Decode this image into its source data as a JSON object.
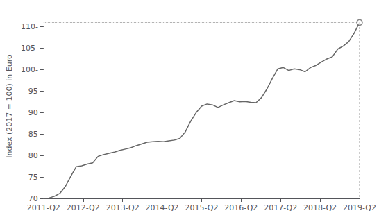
{
  "chart_data": {
    "type": "line",
    "ylabel": "Index (2017 = 100) in Euro",
    "x": [
      0,
      0.5517,
      1.1034,
      1.6552,
      2.2069,
      2.7586,
      3.3103,
      3.8621,
      4.4138,
      4.9655,
      5.5172,
      6.069,
      6.6207,
      7.1724,
      7.7241,
      8.2759,
      8.8276,
      9.3793,
      9.931,
      10.4828,
      11.0345,
      11.5862,
      12.1379,
      12.6897,
      13.2414,
      13.7931,
      14.3448,
      14.8966,
      15.4483,
      16,
      16.5517,
      17.1034,
      17.6552,
      18.2069,
      18.7586,
      19.3103,
      19.8621,
      20.4138,
      20.9655,
      21.5172,
      22.069,
      22.6207,
      23.1724,
      23.7241,
      24.2759,
      24.8276,
      25.3793,
      25.931,
      26.4828,
      27.0345,
      27.5862,
      28.1379,
      28.6897,
      29.2414,
      29.7931,
      30.3448,
      30.8966,
      31.4483,
      32
    ],
    "series": [
      {
        "color": "#666666",
        "line_style": "solid",
        "values": [
          70.0,
          70.1,
          70.5,
          71.2,
          72.8,
          75.2,
          77.4,
          77.6,
          78.0,
          78.3,
          79.8,
          80.2,
          80.5,
          80.8,
          81.2,
          81.5,
          81.8,
          82.3,
          82.7,
          83.1,
          83.2,
          83.3,
          83.2,
          83.4,
          83.6,
          84.0,
          85.5,
          88.0,
          90.0,
          91.5,
          92.0,
          91.8,
          91.2,
          91.8,
          92.3,
          92.8,
          92.5,
          92.6,
          92.4,
          92.3,
          93.5,
          95.5,
          98.0,
          100.2,
          100.5,
          99.8,
          100.2,
          100.0,
          99.5,
          100.5,
          101.0,
          101.8,
          102.5,
          103.0,
          104.8,
          105.5,
          106.5,
          108.5,
          111.0
        ]
      }
    ],
    "last_value": {
      "value": 111.0,
      "color": "#999999",
      "line_style": "dotted"
    },
    "xlim": [
      0,
      32
    ],
    "xticks": [
      {
        "value": 0,
        "label": "2011-Q2"
      },
      {
        "value": 4,
        "label": "2012-Q2"
      },
      {
        "value": 8,
        "label": "2013-Q2"
      },
      {
        "value": 12,
        "label": "2014-Q2"
      },
      {
        "value": 16,
        "label": "2015-Q2"
      },
      {
        "value": 20,
        "label": "2016-Q2"
      },
      {
        "value": 24,
        "label": "2017-Q2"
      },
      {
        "value": 28,
        "label": "2018-Q2"
      },
      {
        "value": 32,
        "label": "2019-Q2"
      }
    ],
    "ylim": [
      70,
      113
    ],
    "yticks": [
      70,
      75,
      80,
      85,
      90,
      95,
      {
        "value": 100,
        "label": "100-"
      },
      {
        "value": 105,
        "label": "105-"
      },
      {
        "value": 110,
        "label": "110-"
      }
    ],
    "grid": false
  }
}
